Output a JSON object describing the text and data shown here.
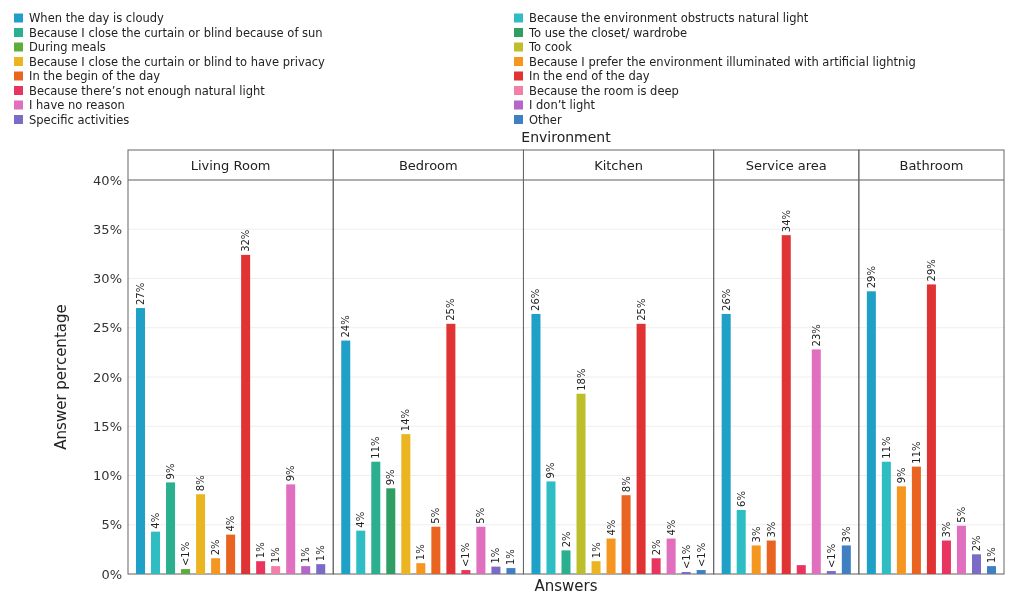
{
  "chart_data": {
    "type": "bar",
    "xlabel": "Answers",
    "x2label": "Environment",
    "ylabel": "Answer percentage",
    "categories": [
      "Living Room",
      "Bedroom",
      "Kitchen",
      "Service area",
      "Bathroom"
    ],
    "ylim": [
      0,
      40
    ],
    "yticks": [
      {
        "value": 0,
        "label": "0%"
      },
      {
        "value": 5,
        "label": "5%"
      },
      {
        "value": 10,
        "label": "10%"
      },
      {
        "value": 15,
        "label": "15%"
      },
      {
        "value": 20,
        "label": "20%"
      },
      {
        "value": 25,
        "label": "25%"
      },
      {
        "value": 30,
        "label": "30%"
      },
      {
        "value": 35,
        "label": "35%"
      },
      {
        "value": 40,
        "label": "40%"
      }
    ],
    "grid": "y",
    "legend": "top",
    "series": [
      {
        "name": "When the day is cloudy",
        "color": "#1fa0c6",
        "values": [
          27.0,
          23.7,
          26.4,
          26.4,
          28.7
        ],
        "value_labels": [
          "27%",
          "24%",
          "26%",
          "26%",
          "29%"
        ]
      },
      {
        "name": "Because the environment obstructs natural light",
        "color": "#2ebdc2",
        "values": [
          4.3,
          4.4,
          9.4,
          6.5,
          11.4
        ],
        "value_labels": [
          "4%",
          "4%",
          "9%",
          "6%",
          "11%"
        ]
      },
      {
        "name": "Because I close the curtain or blind because of sun",
        "color": "#2bb08f",
        "values": [
          9.3,
          11.4,
          2.4,
          null,
          null
        ],
        "value_labels": [
          "9%",
          "11%",
          "2%",
          null,
          null
        ]
      },
      {
        "name": "To use the closet/ wardrobe",
        "color": "#2f9e62",
        "values": [
          null,
          8.7,
          null,
          null,
          null
        ],
        "value_labels": [
          null,
          "9%",
          null,
          null,
          null
        ]
      },
      {
        "name": "During meals",
        "color": "#5cae3c",
        "values": [
          0.5,
          null,
          null,
          null,
          null
        ],
        "value_labels": [
          "<1%",
          null,
          null,
          null,
          null
        ]
      },
      {
        "name": "To cook",
        "color": "#bcbf2b",
        "values": [
          null,
          null,
          18.3,
          null,
          null
        ],
        "value_labels": [
          null,
          null,
          "18%",
          null,
          null
        ]
      },
      {
        "name": "Because I close the curtain or blind to have privacy",
        "color": "#ebb521",
        "values": [
          8.1,
          14.2,
          1.3,
          null,
          null
        ],
        "value_labels": [
          "8%",
          "14%",
          "1%",
          null,
          null
        ]
      },
      {
        "name": "Because I prefer the environment illuminated with artificial lightnig",
        "color": "#f4961f",
        "values": [
          1.6,
          1.1,
          3.6,
          2.9,
          8.9
        ],
        "value_labels": [
          "2%",
          "1%",
          "4%",
          "3%",
          "9%"
        ]
      },
      {
        "name": "In the begin of the day",
        "color": "#ea6421",
        "values": [
          4.0,
          4.8,
          8.0,
          3.4,
          10.9
        ],
        "value_labels": [
          "4%",
          "5%",
          "8%",
          "3%",
          "11%"
        ]
      },
      {
        "name": "In the end of the day",
        "color": "#e03333",
        "values": [
          32.4,
          25.4,
          25.4,
          34.4,
          29.4
        ],
        "value_labels": [
          "32%",
          "25%",
          "25%",
          "34%",
          "29%"
        ]
      },
      {
        "name": "Because there’s not enough natural light",
        "color": "#e8355f",
        "values": [
          1.3,
          0.4,
          1.6,
          0.9,
          3.4
        ],
        "value_labels": [
          "1%",
          "<1%",
          "2%",
          null,
          "3%"
        ]
      },
      {
        "name": "Because the room is deep",
        "color": "#f27fa6",
        "values": [
          0.8,
          null,
          null,
          null,
          null
        ],
        "value_labels": [
          "1%",
          null,
          null,
          null,
          null
        ]
      },
      {
        "name": "I have no reason",
        "color": "#e06fbf",
        "values": [
          9.1,
          4.8,
          3.6,
          22.8,
          4.9
        ],
        "value_labels": [
          "9%",
          "5%",
          "4%",
          "23%",
          "5%"
        ]
      },
      {
        "name": "I don’t light",
        "color": "#b566c9",
        "values": [
          0.8,
          null,
          null,
          null,
          null
        ],
        "value_labels": [
          "1%",
          null,
          null,
          null,
          null
        ]
      },
      {
        "name": "Specific activities",
        "color": "#7b6bc6",
        "values": [
          1.0,
          0.75,
          0.2,
          0.3,
          2.0
        ],
        "value_labels": [
          "1%",
          "1%",
          "<1%",
          "<1%",
          "2%"
        ]
      },
      {
        "name": "Other",
        "color": "#3f7fc2",
        "values": [
          null,
          0.6,
          0.4,
          2.9,
          0.8
        ],
        "value_labels": [
          null,
          "1%",
          "<1%",
          "3%",
          "1%"
        ]
      }
    ]
  }
}
